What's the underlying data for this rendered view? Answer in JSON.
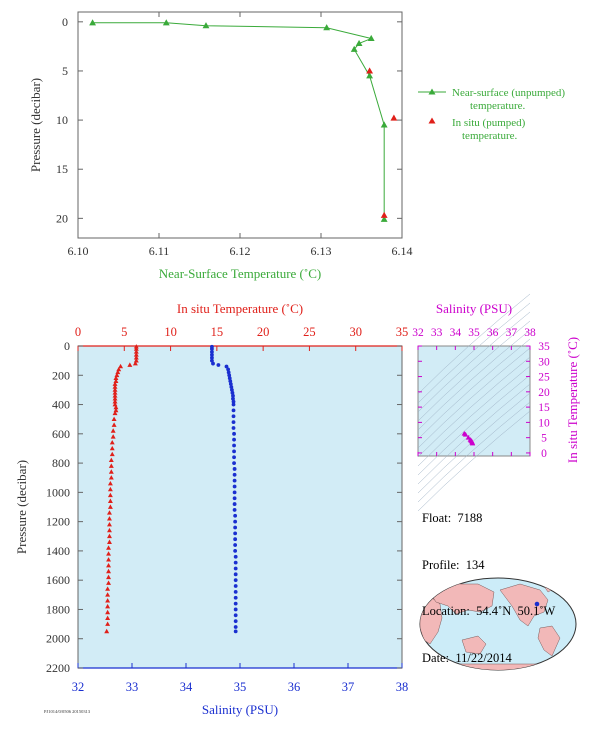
{
  "chart_data": [
    {
      "type": "scatter",
      "xlabel": "Near-Surface Temperature (˚C)",
      "ylabel": "Pressure (decibar)",
      "xlim": [
        6.1,
        6.14
      ],
      "ylim": [
        22,
        -1
      ],
      "xticks": [
        "6.10",
        "6.11",
        "6.12",
        "6.13",
        "6.14"
      ],
      "yticks": [
        "0",
        "5",
        "10",
        "15",
        "20"
      ],
      "series": [
        {
          "name": "Near-surface (unpumped) temperature.",
          "color": "#3aaa3a",
          "style": "line-triangle",
          "points": [
            [
              6.1018,
              0.1
            ],
            [
              6.1109,
              0.1
            ],
            [
              6.1158,
              0.4
            ],
            [
              6.1307,
              0.6
            ],
            [
              6.1362,
              1.7
            ],
            [
              6.1347,
              2.2
            ],
            [
              6.1341,
              2.8
            ],
            [
              6.136,
              5.5
            ],
            [
              6.1378,
              10.5
            ],
            [
              6.1378,
              20.1
            ]
          ]
        },
        {
          "name": "In situ (pumped) temperature.",
          "color": "#e0201a",
          "style": "triangle",
          "points": [
            [
              6.136,
              5.0
            ],
            [
              6.139,
              9.8
            ],
            [
              6.1378,
              19.7
            ]
          ]
        }
      ],
      "legend_position": "right"
    },
    {
      "type": "scatter",
      "xlabel": "Salinity (PSU)",
      "x2label": "In situ Temperature (˚C)",
      "ylabel": "Pressure (decibar)",
      "xlim": [
        32,
        38
      ],
      "x2lim": [
        0,
        35
      ],
      "ylim": [
        2200,
        0
      ],
      "xticks": [
        "32",
        "33",
        "34",
        "35",
        "36",
        "37",
        "38"
      ],
      "x2ticks": [
        "0",
        "5",
        "10",
        "15",
        "20",
        "25",
        "30",
        "35"
      ],
      "yticks": [
        "0",
        "200",
        "400",
        "600",
        "800",
        "1000",
        "1200",
        "1400",
        "1600",
        "1800",
        "2000",
        "2200"
      ],
      "background": "#d2ecf6",
      "temperature": [
        [
          6.3,
          5
        ],
        [
          6.3,
          20
        ],
        [
          6.3,
          40
        ],
        [
          6.3,
          60
        ],
        [
          6.3,
          80
        ],
        [
          6.3,
          100
        ],
        [
          6.2,
          120
        ],
        [
          5.6,
          130
        ],
        [
          4.6,
          140
        ],
        [
          4.4,
          160
        ],
        [
          4.3,
          180
        ],
        [
          4.2,
          200
        ],
        [
          4.1,
          220
        ],
        [
          4.1,
          240
        ],
        [
          4.0,
          260
        ],
        [
          4.0,
          280
        ],
        [
          4.0,
          300
        ],
        [
          4.0,
          320
        ],
        [
          4.0,
          340
        ],
        [
          4.0,
          360
        ],
        [
          4.0,
          380
        ],
        [
          4.0,
          400
        ],
        [
          4.1,
          420
        ],
        [
          4.1,
          440
        ],
        [
          4.0,
          460
        ],
        [
          3.9,
          500
        ],
        [
          3.9,
          540
        ],
        [
          3.8,
          580
        ],
        [
          3.8,
          620
        ],
        [
          3.7,
          660
        ],
        [
          3.7,
          700
        ],
        [
          3.7,
          740
        ],
        [
          3.6,
          780
        ],
        [
          3.6,
          820
        ],
        [
          3.6,
          860
        ],
        [
          3.6,
          900
        ],
        [
          3.5,
          940
        ],
        [
          3.5,
          980
        ],
        [
          3.5,
          1020
        ],
        [
          3.5,
          1060
        ],
        [
          3.5,
          1100
        ],
        [
          3.4,
          1140
        ],
        [
          3.4,
          1180
        ],
        [
          3.4,
          1220
        ],
        [
          3.4,
          1260
        ],
        [
          3.4,
          1300
        ],
        [
          3.4,
          1340
        ],
        [
          3.3,
          1380
        ],
        [
          3.3,
          1420
        ],
        [
          3.3,
          1460
        ],
        [
          3.3,
          1500
        ],
        [
          3.3,
          1540
        ],
        [
          3.3,
          1580
        ],
        [
          3.3,
          1620
        ],
        [
          3.2,
          1660
        ],
        [
          3.2,
          1700
        ],
        [
          3.2,
          1740
        ],
        [
          3.2,
          1780
        ],
        [
          3.2,
          1820
        ],
        [
          3.2,
          1860
        ],
        [
          3.2,
          1900
        ],
        [
          3.1,
          1950
        ]
      ],
      "salinity": [
        [
          34.48,
          5
        ],
        [
          34.48,
          20
        ],
        [
          34.48,
          40
        ],
        [
          34.48,
          60
        ],
        [
          34.48,
          80
        ],
        [
          34.48,
          100
        ],
        [
          34.5,
          120
        ],
        [
          34.6,
          130
        ],
        [
          34.75,
          140
        ],
        [
          34.78,
          160
        ],
        [
          34.79,
          180
        ],
        [
          34.8,
          200
        ],
        [
          34.81,
          220
        ],
        [
          34.82,
          240
        ],
        [
          34.83,
          260
        ],
        [
          34.84,
          280
        ],
        [
          34.85,
          300
        ],
        [
          34.86,
          320
        ],
        [
          34.87,
          340
        ],
        [
          34.87,
          360
        ],
        [
          34.88,
          380
        ],
        [
          34.88,
          400
        ],
        [
          34.88,
          440
        ],
        [
          34.88,
          480
        ],
        [
          34.88,
          520
        ],
        [
          34.88,
          560
        ],
        [
          34.89,
          600
        ],
        [
          34.89,
          640
        ],
        [
          34.89,
          680
        ],
        [
          34.89,
          720
        ],
        [
          34.89,
          760
        ],
        [
          34.89,
          800
        ],
        [
          34.9,
          840
        ],
        [
          34.9,
          880
        ],
        [
          34.9,
          920
        ],
        [
          34.9,
          960
        ],
        [
          34.9,
          1000
        ],
        [
          34.9,
          1040
        ],
        [
          34.9,
          1080
        ],
        [
          34.9,
          1120
        ],
        [
          34.91,
          1160
        ],
        [
          34.91,
          1200
        ],
        [
          34.91,
          1240
        ],
        [
          34.91,
          1280
        ],
        [
          34.91,
          1320
        ],
        [
          34.91,
          1360
        ],
        [
          34.91,
          1400
        ],
        [
          34.92,
          1440
        ],
        [
          34.92,
          1480
        ],
        [
          34.92,
          1520
        ],
        [
          34.92,
          1560
        ],
        [
          34.92,
          1600
        ],
        [
          34.92,
          1640
        ],
        [
          34.92,
          1680
        ],
        [
          34.92,
          1720
        ],
        [
          34.92,
          1760
        ],
        [
          34.92,
          1800
        ],
        [
          34.92,
          1840
        ],
        [
          34.92,
          1880
        ],
        [
          34.92,
          1920
        ],
        [
          34.92,
          1950
        ]
      ]
    },
    {
      "type": "scatter",
      "xlabel": "Salinity (PSU)",
      "ylabel": "In situ Temperature (˚C)",
      "xlim": [
        32,
        38
      ],
      "ylim": [
        -1,
        35
      ],
      "xticks": [
        "32",
        "33",
        "34",
        "35",
        "36",
        "37",
        "38"
      ],
      "yticks": [
        "0",
        "5",
        "10",
        "15",
        "20",
        "25",
        "30",
        "35"
      ],
      "points": [
        [
          34.48,
          6.3
        ],
        [
          34.55,
          6.0
        ],
        [
          34.7,
          5.0
        ],
        [
          34.8,
          4.3
        ],
        [
          34.84,
          4.0
        ],
        [
          34.88,
          3.8
        ],
        [
          34.9,
          3.5
        ],
        [
          34.92,
          3.2
        ],
        [
          34.92,
          3.1
        ]
      ]
    }
  ],
  "info": {
    "float": "Float:  7188",
    "profile": "Profile:  134",
    "location": "Location:  54.4˚N  50.1˚W",
    "date": "Date:  11/22/2014"
  },
  "footer_code": "PJ1014/0/0506 20150313",
  "colors": {
    "green": "#3aaa3a",
    "red": "#e0201a",
    "blue": "#1a2fd0",
    "magenta": "#cc00cc",
    "panel_bg": "#d2ecf6",
    "land": "#f2b8b8",
    "ocean": "#ccecf8"
  }
}
